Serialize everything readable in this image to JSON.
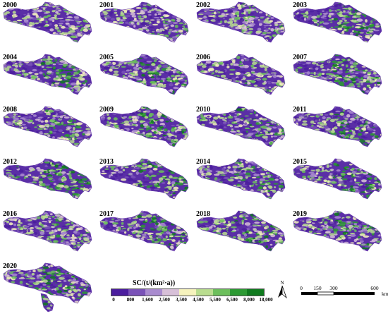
{
  "panels": [
    {
      "year": "2000",
      "green": 0.1
    },
    {
      "year": "2001",
      "green": 0.14
    },
    {
      "year": "2002",
      "green": 0.12
    },
    {
      "year": "2003",
      "green": 0.42
    },
    {
      "year": "2004",
      "green": 0.38
    },
    {
      "year": "2005",
      "green": 0.36
    },
    {
      "year": "2006",
      "green": 0.14
    },
    {
      "year": "2007",
      "green": 0.4
    },
    {
      "year": "2008",
      "green": 0.2
    },
    {
      "year": "2009",
      "green": 0.32
    },
    {
      "year": "2010",
      "green": 0.26
    },
    {
      "year": "2011",
      "green": 0.3
    },
    {
      "year": "2012",
      "green": 0.55
    },
    {
      "year": "2013",
      "green": 0.44
    },
    {
      "year": "2014",
      "green": 0.22
    },
    {
      "year": "2015",
      "green": 0.38
    },
    {
      "year": "2016",
      "green": 0.16
    },
    {
      "year": "2017",
      "green": 0.34
    },
    {
      "year": "2018",
      "green": 0.4
    },
    {
      "year": "2019",
      "green": 0.36
    },
    {
      "year": "2020",
      "green": 0.42
    }
  ],
  "legend": {
    "title": "SC/(t/(km²·a))",
    "ticks": [
      "0",
      "800",
      "1,600",
      "2,500",
      "3,500",
      "4,500",
      "5,500",
      "6,500",
      "8,000",
      "18,000"
    ],
    "colors": [
      "#4b1d9e",
      "#7a52b8",
      "#a98bcf",
      "#d7c0d8",
      "#f6f3bd",
      "#b9dd8f",
      "#6cbf5c",
      "#2c9a33",
      "#0f7a1e"
    ]
  },
  "north_arrow": {
    "label": "N"
  },
  "scale_bar": {
    "ticks": [
      "0",
      "150",
      "300",
      "600"
    ],
    "unit": "km"
  }
}
